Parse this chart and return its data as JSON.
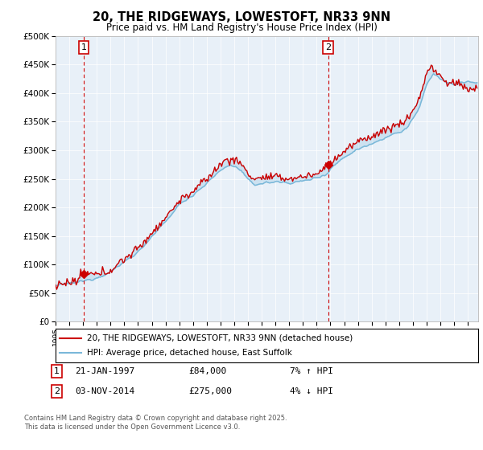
{
  "title": "20, THE RIDGEWAYS, LOWESTOFT, NR33 9NN",
  "subtitle": "Price paid vs. HM Land Registry's House Price Index (HPI)",
  "legend_line1": "20, THE RIDGEWAYS, LOWESTOFT, NR33 9NN (detached house)",
  "legend_line2": "HPI: Average price, detached house, East Suffolk",
  "annotation1_label": "1",
  "annotation1_date": "21-JAN-1997",
  "annotation1_price": "£84,000",
  "annotation1_hpi": "7% ↑ HPI",
  "annotation2_label": "2",
  "annotation2_date": "03-NOV-2014",
  "annotation2_price": "£275,000",
  "annotation2_hpi": "4% ↓ HPI",
  "footnote1": "Contains HM Land Registry data © Crown copyright and database right 2025.",
  "footnote2": "This data is licensed under the Open Government Licence v3.0.",
  "sale1_x": 1997.06,
  "sale1_y": 84000,
  "sale2_x": 2014.84,
  "sale2_y": 275000,
  "hpi_color": "#7ab8d9",
  "price_color": "#cc0000",
  "annotation_box_color": "#cc0000",
  "vline_color": "#cc0000",
  "plot_bg_color": "#e8f0f8",
  "grid_color": "#ffffff",
  "ylim": [
    0,
    500000
  ],
  "xlim_start": 1995.0,
  "xlim_end": 2025.75
}
